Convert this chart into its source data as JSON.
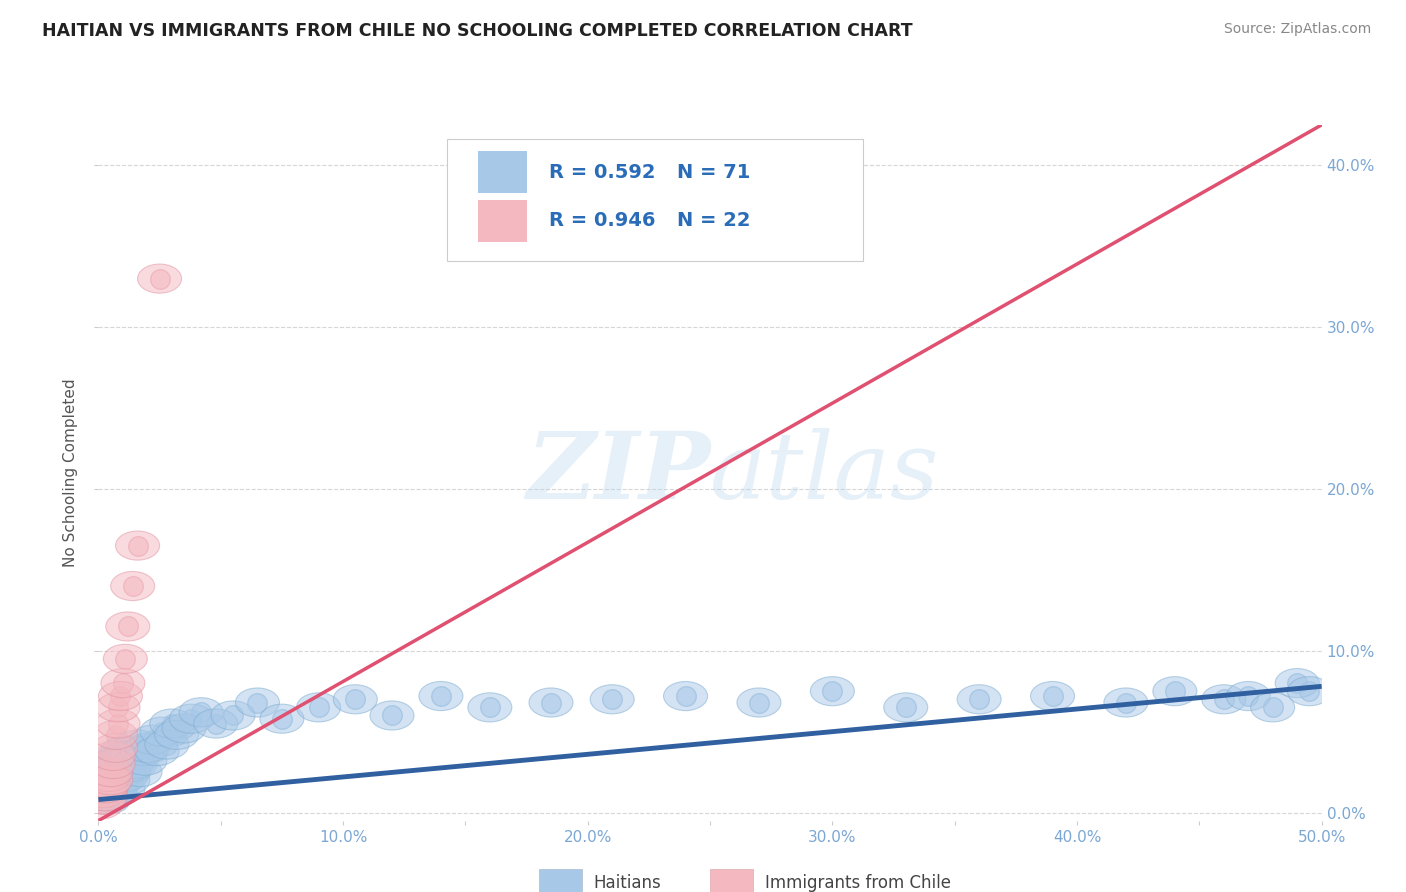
{
  "title": "HAITIAN VS IMMIGRANTS FROM CHILE NO SCHOOLING COMPLETED CORRELATION CHART",
  "source": "Source: ZipAtlas.com",
  "ylabel": "No Schooling Completed",
  "xlim": [
    0.0,
    0.5
  ],
  "ylim": [
    -0.005,
    0.425
  ],
  "xticks": [
    0.0,
    0.1,
    0.2,
    0.3,
    0.4,
    0.5
  ],
  "yticks": [
    0.0,
    0.1,
    0.2,
    0.3,
    0.4
  ],
  "ytick_labels_right": [
    "0.0%",
    "10.0%",
    "20.0%",
    "30.0%",
    "40.0%"
  ],
  "xtick_labels": [
    "0.0%",
    "",
    "10.0%",
    "",
    "20.0%",
    "",
    "30.0%",
    "",
    "40.0%",
    "",
    "50.0%"
  ],
  "xticks_fine": [
    0.0,
    0.05,
    0.1,
    0.15,
    0.2,
    0.25,
    0.3,
    0.35,
    0.4,
    0.45,
    0.5
  ],
  "watermark_text": "ZIPatlas",
  "blue_color": "#A8C8E8",
  "pink_color": "#F4B8C0",
  "blue_line_color": "#3060A0",
  "pink_line_color": "#E05070",
  "legend_r_blue": "R = 0.592",
  "legend_n_blue": "N = 71",
  "legend_r_pink": "R = 0.946",
  "legend_n_pink": "N = 22",
  "blue_scatter_x": [
    0.001,
    0.002,
    0.002,
    0.003,
    0.003,
    0.003,
    0.004,
    0.004,
    0.004,
    0.005,
    0.005,
    0.005,
    0.006,
    0.006,
    0.006,
    0.007,
    0.007,
    0.007,
    0.008,
    0.008,
    0.008,
    0.009,
    0.009,
    0.01,
    0.01,
    0.01,
    0.011,
    0.011,
    0.012,
    0.012,
    0.013,
    0.014,
    0.015,
    0.016,
    0.017,
    0.018,
    0.019,
    0.02,
    0.022,
    0.024,
    0.026,
    0.028,
    0.03,
    0.032,
    0.035,
    0.038,
    0.042,
    0.048,
    0.055,
    0.065,
    0.075,
    0.09,
    0.105,
    0.12,
    0.14,
    0.16,
    0.185,
    0.21,
    0.24,
    0.27,
    0.3,
    0.33,
    0.36,
    0.39,
    0.42,
    0.44,
    0.46,
    0.47,
    0.48,
    0.49,
    0.495
  ],
  "blue_scatter_y": [
    0.015,
    0.01,
    0.02,
    0.012,
    0.018,
    0.022,
    0.008,
    0.015,
    0.025,
    0.01,
    0.02,
    0.028,
    0.015,
    0.022,
    0.03,
    0.012,
    0.025,
    0.032,
    0.018,
    0.028,
    0.035,
    0.02,
    0.03,
    0.015,
    0.025,
    0.038,
    0.022,
    0.035,
    0.02,
    0.032,
    0.028,
    0.035,
    0.03,
    0.042,
    0.025,
    0.038,
    0.032,
    0.04,
    0.045,
    0.038,
    0.05,
    0.042,
    0.055,
    0.048,
    0.052,
    0.058,
    0.062,
    0.055,
    0.06,
    0.068,
    0.058,
    0.065,
    0.07,
    0.06,
    0.072,
    0.065,
    0.068,
    0.07,
    0.072,
    0.068,
    0.075,
    0.065,
    0.07,
    0.072,
    0.068,
    0.075,
    0.07,
    0.072,
    0.065,
    0.08,
    0.075
  ],
  "pink_scatter_x": [
    0.001,
    0.002,
    0.002,
    0.003,
    0.003,
    0.004,
    0.004,
    0.005,
    0.005,
    0.006,
    0.006,
    0.007,
    0.007,
    0.008,
    0.008,
    0.009,
    0.01,
    0.011,
    0.012,
    0.014,
    0.016,
    0.025
  ],
  "pink_scatter_y": [
    0.005,
    0.008,
    0.012,
    0.01,
    0.015,
    0.018,
    0.022,
    0.02,
    0.025,
    0.03,
    0.035,
    0.04,
    0.048,
    0.055,
    0.065,
    0.072,
    0.08,
    0.095,
    0.115,
    0.14,
    0.165,
    0.33
  ],
  "blue_line_x": [
    0.0,
    0.5
  ],
  "blue_line_y": [
    0.008,
    0.078
  ],
  "pink_line_x": [
    0.0,
    0.5
  ],
  "pink_line_y": [
    -0.005,
    0.425
  ],
  "background_color": "#FFFFFF",
  "grid_color": "#CCCCCC"
}
